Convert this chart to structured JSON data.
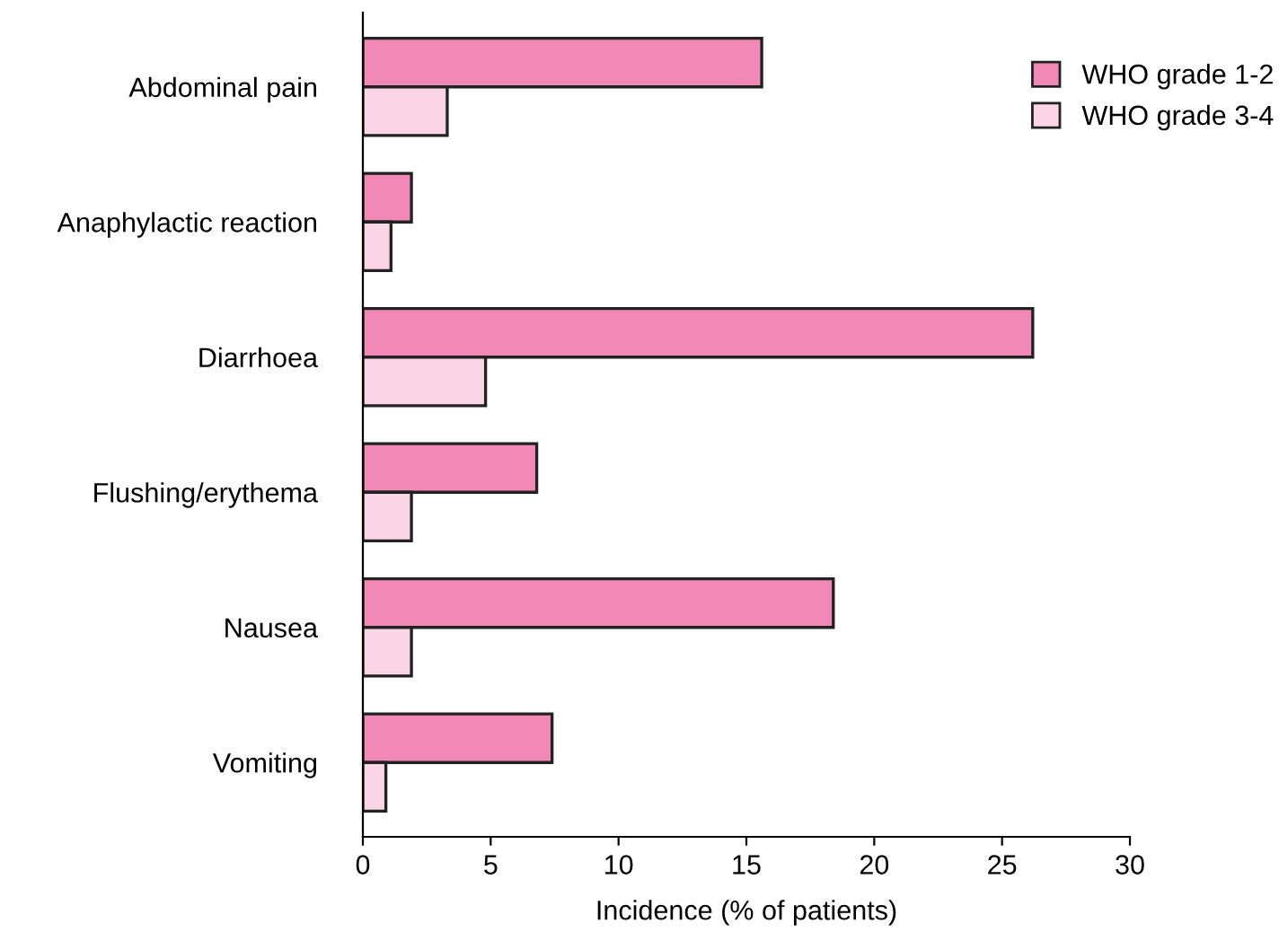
{
  "chart_data": {
    "type": "bar",
    "orientation": "horizontal",
    "xlabel": "Incidence (% of patients)",
    "categories": [
      "Abdominal pain",
      "Anaphylactic reaction",
      "Diarrhoea",
      "Flushing/erythema",
      "Nausea",
      "Vomiting"
    ],
    "series": [
      {
        "name": "WHO grade 1-2",
        "color": "#f288b5",
        "values": [
          15.6,
          1.9,
          26.2,
          6.8,
          18.4,
          7.4
        ]
      },
      {
        "name": "WHO grade 3-4",
        "color": "#f9d5e5",
        "values": [
          3.3,
          1.1,
          4.8,
          1.9,
          1.9,
          0.9
        ]
      }
    ],
    "xlim": [
      0,
      30
    ],
    "xticks": [
      0,
      5,
      10,
      15,
      20,
      25,
      30
    ],
    "grid": false,
    "legend": "top right"
  }
}
